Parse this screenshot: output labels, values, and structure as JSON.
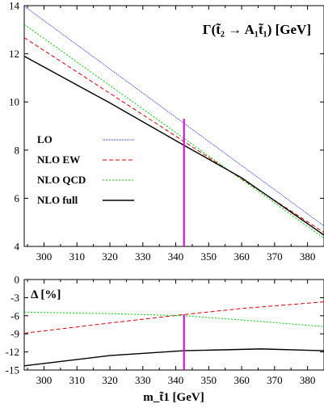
{
  "chart_data": [
    {
      "type": "line",
      "title": "Γ(t̃₂ → A₁t̃₁) [GeV]",
      "xlim": [
        294,
        385
      ],
      "ylim": [
        4,
        14
      ],
      "xticks": [
        300,
        310,
        320,
        330,
        340,
        350,
        360,
        370,
        380
      ],
      "yticks": [
        4,
        6,
        8,
        10,
        12,
        14
      ],
      "grid": false,
      "legend_position": "left-middle",
      "series": [
        {
          "name": "LO",
          "color": "#2233ff",
          "dash": "1,1",
          "x": [
            294,
            385
          ],
          "y": [
            13.98,
            4.85
          ]
        },
        {
          "name": "NLO EW",
          "color": "#dd0000",
          "dash": "5,3",
          "x": [
            294,
            385
          ],
          "y": [
            12.67,
            4.58
          ]
        },
        {
          "name": "NLO QCD",
          "color": "#00cc00",
          "dash": "2,2",
          "x": [
            294,
            385
          ],
          "y": [
            13.22,
            4.34
          ]
        },
        {
          "name": "NLO full",
          "color": "#000000",
          "dash": "",
          "x": [
            294,
            320,
            342.5,
            360,
            385
          ],
          "y": [
            11.9,
            9.96,
            8.2,
            6.85,
            4.47
          ]
        }
      ],
      "marker_line": {
        "color": "#dd00dd",
        "x": 342.5,
        "y_from": 4,
        "y_to": 9.3
      }
    },
    {
      "type": "line",
      "ylabel": "Δ [%]",
      "xlabel": "m_t̃1 [GeV]",
      "xlim": [
        294,
        385
      ],
      "ylim": [
        -15,
        0
      ],
      "xticks": [
        300,
        310,
        320,
        330,
        340,
        350,
        360,
        370,
        380
      ],
      "yticks": [
        0,
        -3,
        -6,
        -9,
        -12,
        -15
      ],
      "grid": false,
      "series": [
        {
          "name": "NLO EW",
          "color": "#dd0000",
          "dash": "5,3",
          "x": [
            294,
            320,
            342.5,
            360,
            385
          ],
          "y": [
            -8.9,
            -7.2,
            -5.8,
            -4.8,
            -3.7
          ]
        },
        {
          "name": "NLO QCD",
          "color": "#00cc00",
          "dash": "2,2",
          "x": [
            294,
            320,
            342.5,
            360,
            385
          ],
          "y": [
            -5.4,
            -5.65,
            -6.0,
            -6.7,
            -7.8
          ]
        },
        {
          "name": "NLO full",
          "color": "#000000",
          "dash": "",
          "x": [
            294,
            320,
            342.5,
            366,
            385
          ],
          "y": [
            -14.3,
            -12.6,
            -11.8,
            -11.5,
            -11.8
          ]
        }
      ],
      "marker_line": {
        "color": "#dd00dd",
        "x": 342.5,
        "y_from": -15,
        "y_to": -5.8
      }
    }
  ]
}
